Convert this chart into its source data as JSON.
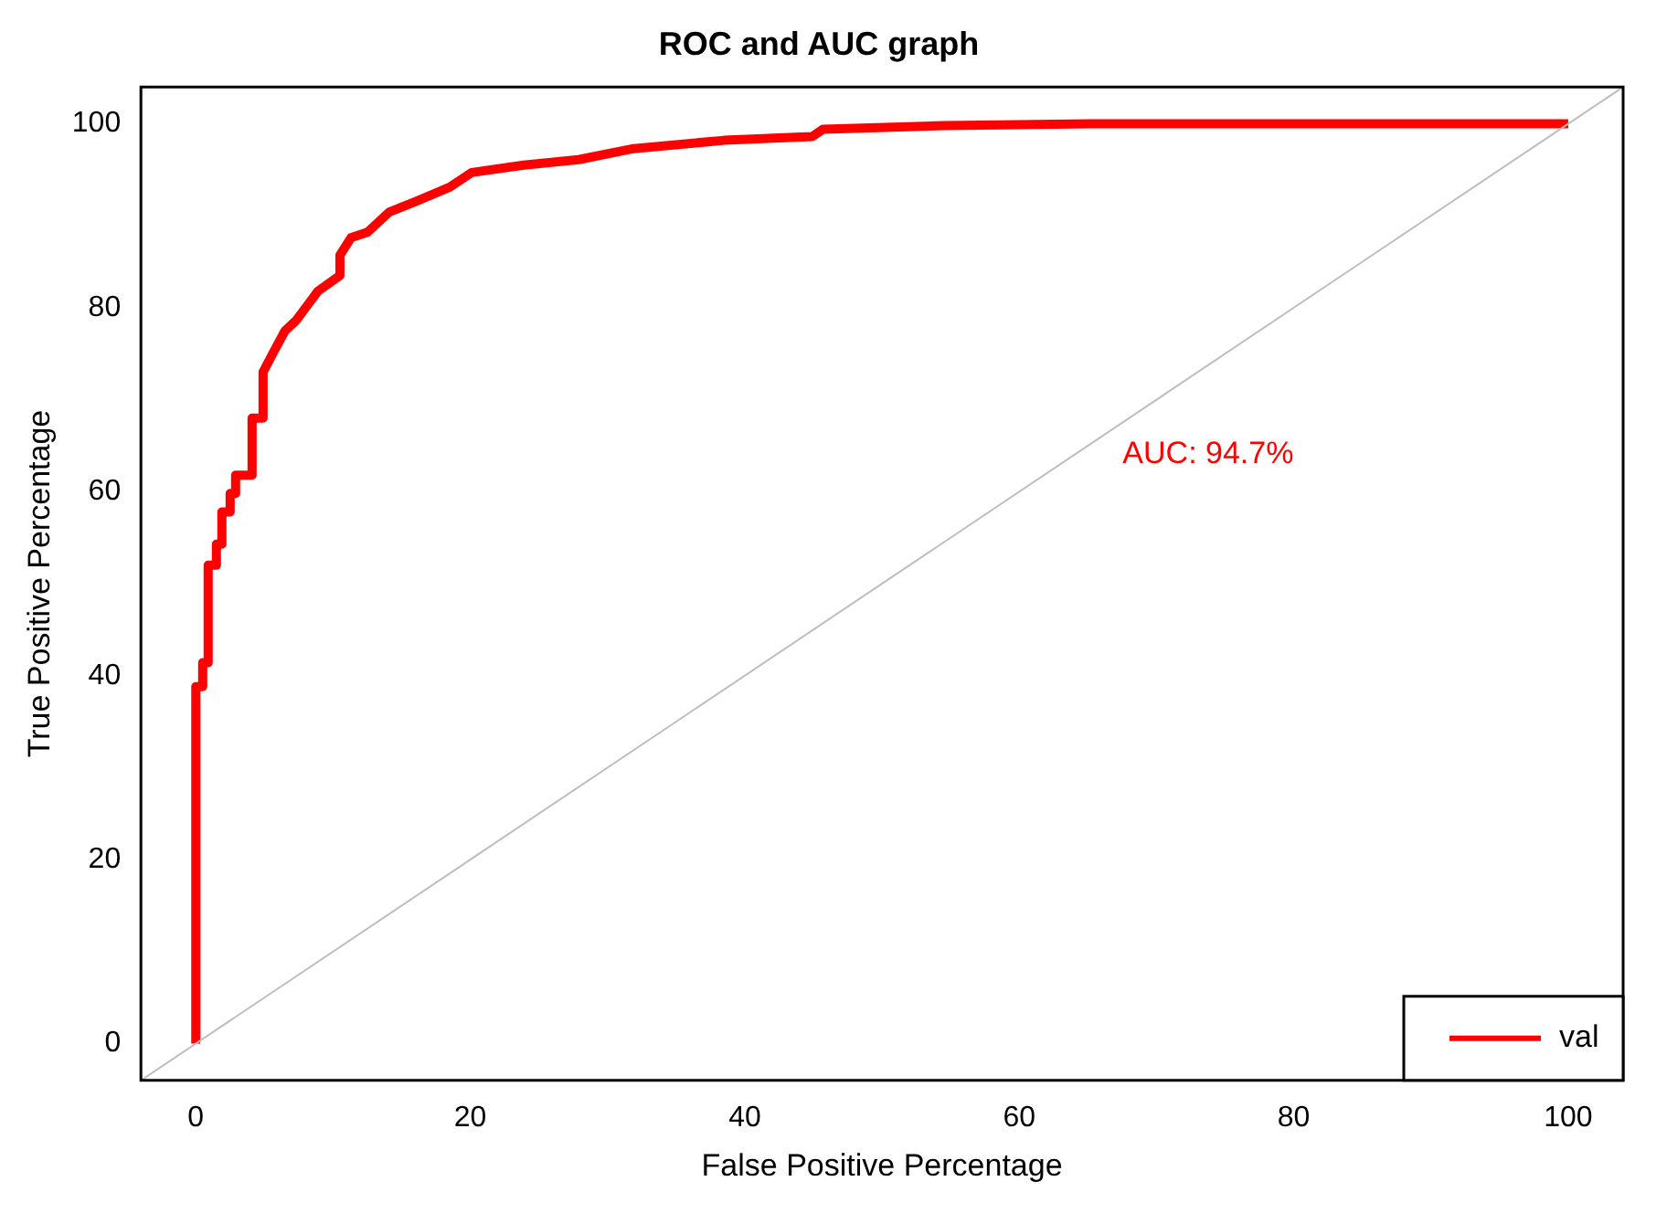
{
  "chart_data": {
    "type": "line",
    "title": "ROC and AUC graph",
    "xlabel": "False Positive Percentage",
    "ylabel": "True Positive Percentage",
    "xlim": [
      -4,
      104
    ],
    "ylim": [
      -4,
      104
    ],
    "xticks": [
      0,
      20,
      40,
      60,
      80,
      100
    ],
    "yticks": [
      0,
      20,
      40,
      60,
      80,
      100
    ],
    "grid": false,
    "legend": "bottom right",
    "marker": "none",
    "line_style": "solid",
    "annotations": [
      "AUC: 94.7%"
    ],
    "series": [
      {
        "name": "val",
        "color": "#ff0000",
        "x": [
          0,
          0,
          0.5,
          0.5,
          0.9,
          0.9,
          1.5,
          1.5,
          1.9,
          1.9,
          2.5,
          2.5,
          2.9,
          2.9,
          4.1,
          4.1,
          4.9,
          4.9,
          5.6,
          6.5,
          7.3,
          8.1,
          8.9,
          10.5,
          10.5,
          11.3,
          12.5,
          14.1,
          16.1,
          18.5,
          20.1,
          23.9,
          27.9,
          31.9,
          38.5,
          44.9,
          45.7,
          54.5,
          65.2,
          100
        ],
        "values": [
          0,
          38.8,
          38.8,
          41.4,
          41.4,
          52,
          52,
          54.3,
          54.3,
          57.8,
          57.8,
          59.8,
          59.8,
          61.8,
          61.8,
          68,
          68,
          73,
          75,
          77.5,
          78.6,
          80.2,
          81.8,
          83.5,
          85.7,
          87.6,
          88.2,
          90.4,
          91.6,
          93.1,
          94.7,
          95.5,
          96.1,
          97.3,
          98.2,
          98.6,
          99.4,
          99.8,
          100,
          100
        ]
      },
      {
        "color": "#bebebe",
        "x": [
          -4,
          104
        ],
        "values": [
          -4,
          104
        ]
      }
    ]
  }
}
